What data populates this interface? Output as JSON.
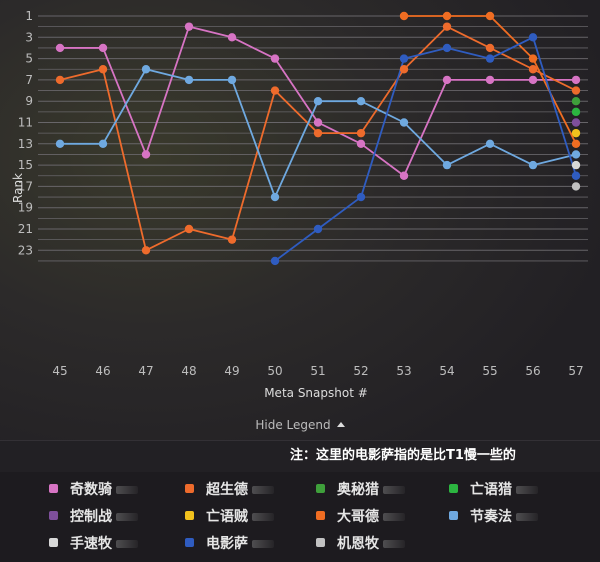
{
  "chart_data": {
    "type": "line",
    "x": [
      45,
      46,
      47,
      48,
      49,
      50,
      51,
      52,
      53,
      54,
      55,
      56,
      57
    ],
    "xlabel": "Meta Snapshot #",
    "ylabel": "Rank",
    "yticks": [
      1,
      3,
      5,
      7,
      9,
      11,
      13,
      15,
      17,
      19,
      21,
      23
    ],
    "ylim": [
      24,
      0
    ],
    "y_inverted": true,
    "grid": true,
    "series": [
      {
        "name": "奇数骑",
        "color": "#d774c4",
        "values": [
          4,
          4,
          14,
          2,
          3,
          5,
          11,
          13,
          16,
          7,
          7,
          7,
          7
        ]
      },
      {
        "name": "超生德",
        "color": "#ee6b2c",
        "values": [
          7,
          6,
          23,
          21,
          22,
          8,
          12,
          12,
          6,
          2,
          4,
          6,
          8
        ]
      },
      {
        "name": "奥秘猎",
        "color": "#3fa03b",
        "values": [
          null,
          null,
          null,
          null,
          null,
          null,
          null,
          null,
          null,
          null,
          null,
          null,
          9
        ]
      },
      {
        "name": "亡语猎",
        "color": "#2cb540",
        "values": [
          null,
          null,
          null,
          null,
          null,
          null,
          null,
          null,
          null,
          null,
          null,
          null,
          10
        ]
      },
      {
        "name": "控制战",
        "color": "#7e4f9c",
        "values": [
          null,
          null,
          null,
          null,
          null,
          null,
          null,
          null,
          null,
          null,
          null,
          null,
          11
        ]
      },
      {
        "name": "亡语贼",
        "color": "#f2c21d",
        "values": [
          null,
          null,
          null,
          null,
          null,
          null,
          null,
          null,
          null,
          null,
          null,
          null,
          12
        ]
      },
      {
        "name": "大哥德",
        "color": "#f06d22",
        "values": [
          null,
          null,
          null,
          null,
          null,
          null,
          null,
          null,
          1,
          1,
          1,
          5,
          13
        ]
      },
      {
        "name": "节奏法",
        "color": "#6fa9e0",
        "values": [
          13,
          13,
          6,
          7,
          7,
          18,
          9,
          9,
          11,
          15,
          13,
          15,
          14
        ]
      },
      {
        "name": "手速牧",
        "color": "#d8d8d8",
        "values": [
          null,
          null,
          null,
          null,
          null,
          null,
          null,
          null,
          null,
          null,
          null,
          null,
          15
        ]
      },
      {
        "name": "电影萨",
        "color": "#2f5cc0",
        "values": [
          null,
          null,
          null,
          null,
          null,
          24,
          21,
          18,
          5,
          4,
          5,
          3,
          16
        ]
      },
      {
        "name": "机恩牧",
        "color": "#c2c2c2",
        "values": [
          null,
          null,
          null,
          null,
          null,
          null,
          null,
          null,
          null,
          null,
          null,
          null,
          17
        ]
      }
    ]
  },
  "legend_toggle": "Hide Legend",
  "note": "注：这里的电影萨指的是比T1慢一些的",
  "legend": [
    {
      "label": "奇数骑",
      "color": "#d774c4"
    },
    {
      "label": "超生德",
      "color": "#ee6b2c"
    },
    {
      "label": "奥秘猎",
      "color": "#3fa03b"
    },
    {
      "label": "亡语猎",
      "color": "#2cb540"
    },
    {
      "label": "控制战",
      "color": "#7e4f9c"
    },
    {
      "label": "亡语贼",
      "color": "#f2c21d"
    },
    {
      "label": "大哥德",
      "color": "#f06d22"
    },
    {
      "label": "节奏法",
      "color": "#6fa9e0"
    },
    {
      "label": "手速牧",
      "color": "#d8d8d8"
    },
    {
      "label": "电影萨",
      "color": "#2f5cc0"
    },
    {
      "label": "机恩牧",
      "color": "#c2c2c2"
    }
  ]
}
